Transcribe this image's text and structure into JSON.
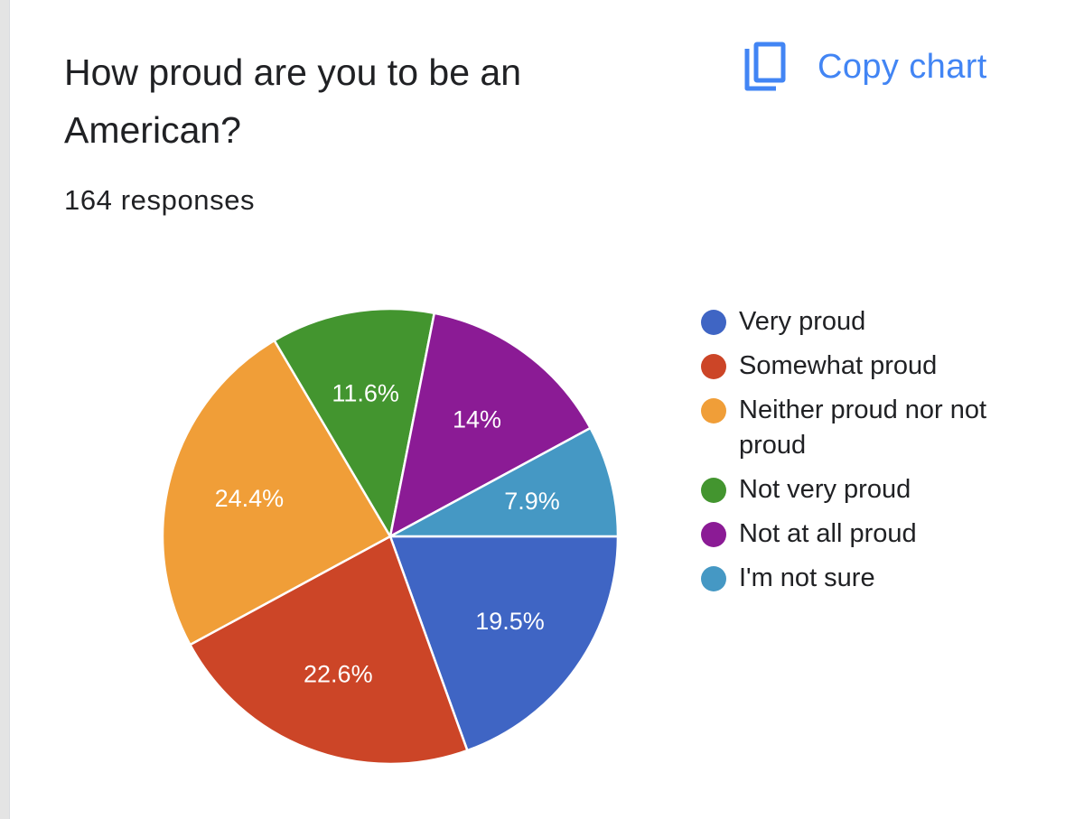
{
  "header": {
    "title": "How proud are you to be an American?",
    "responses": "164 responses",
    "copy_label": "Copy chart",
    "copy_icon": "copy-icon"
  },
  "colors": {
    "accent": "#4285f4",
    "text": "#202124"
  },
  "chart_data": {
    "type": "pie",
    "categories": [
      "Very proud",
      "Somewhat proud",
      "Neither proud nor not proud",
      "Not very proud",
      "Not at all proud",
      "I'm not sure"
    ],
    "values": [
      19.5,
      22.6,
      24.4,
      11.6,
      14,
      7.9
    ],
    "labels": [
      "19.5%",
      "22.6%",
      "24.4%",
      "11.6%",
      "14%",
      "7.9%"
    ],
    "colors": [
      "#3f65c4",
      "#cc4527",
      "#f09e38",
      "#43952f",
      "#8b1b95",
      "#4598c4"
    ],
    "legend_position": "right"
  }
}
